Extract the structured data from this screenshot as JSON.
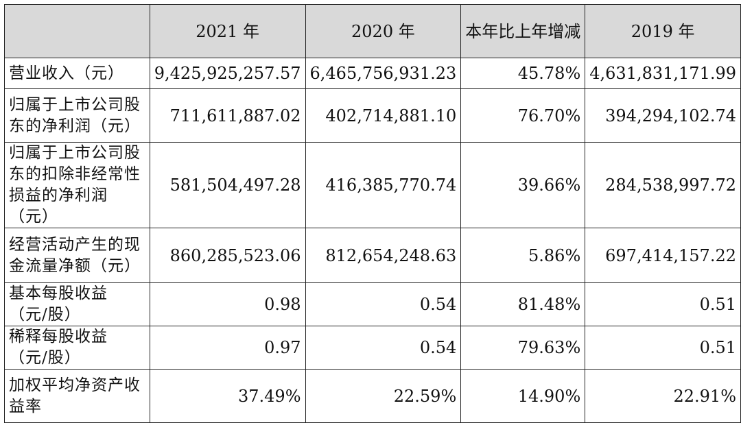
{
  "header": {
    "corner": "",
    "col_2021": "2021 年",
    "col_2020": "2020 年",
    "col_change": "本年比上年增减",
    "col_2019": "2019 年"
  },
  "rows": [
    {
      "label": "营业收入（元）",
      "y2021": "9,425,925,257.57",
      "y2020": "6,465,756,931.23",
      "change": "45.78%",
      "y2019": "4,631,831,171.99"
    },
    {
      "label": "归属于上市公司股东的净利润（元）",
      "y2021": "711,611,887.02",
      "y2020": "402,714,881.10",
      "change": "76.70%",
      "y2019": "394,294,102.74"
    },
    {
      "label": "归属于上市公司股东的扣除非经常性损益的净利润（元）",
      "y2021": "581,504,497.28",
      "y2020": "416,385,770.74",
      "change": "39.66%",
      "y2019": "284,538,997.72"
    },
    {
      "label": "经营活动产生的现金流量净额（元）",
      "y2021": "860,285,523.06",
      "y2020": "812,654,248.63",
      "change": "5.86%",
      "y2019": "697,414,157.22"
    },
    {
      "label": "基本每股收益（元/股）",
      "y2021": "0.98",
      "y2020": "0.54",
      "change": "81.48%",
      "y2019": "0.51"
    },
    {
      "label": "稀释每股收益（元/股）",
      "y2021": "0.97",
      "y2020": "0.54",
      "change": "79.63%",
      "y2019": "0.51"
    },
    {
      "label": "加权平均净资产收益率",
      "y2021": "37.49%",
      "y2020": "22.59%",
      "change": "14.90%",
      "y2019": "22.91%"
    }
  ]
}
